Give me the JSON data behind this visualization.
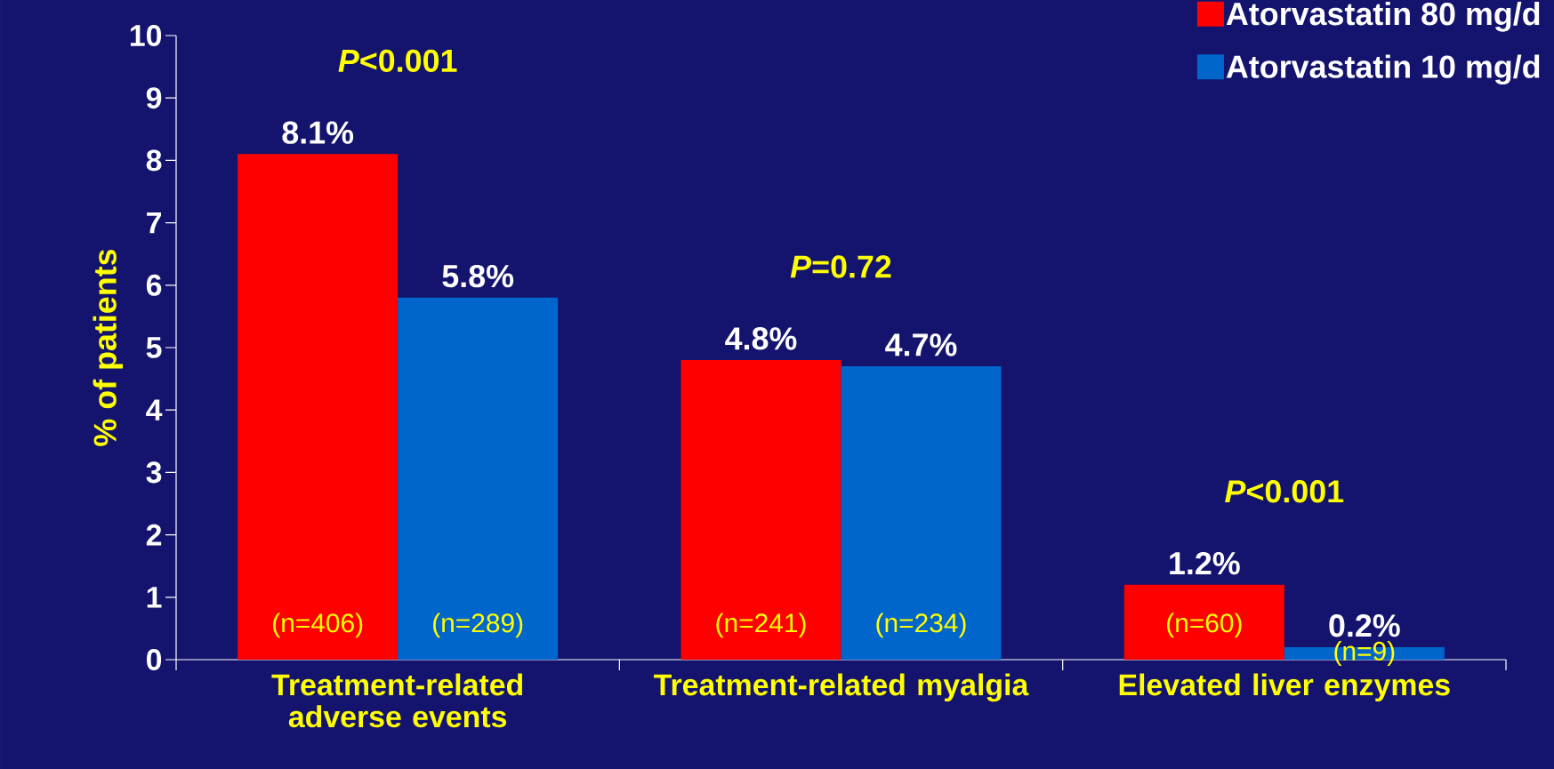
{
  "chart_data": {
    "type": "bar",
    "ylabel": "% of patients",
    "categories": [
      "Treatment-related adverse events",
      "Treatment-related myalgia",
      "Elevated liver enzymes"
    ],
    "series": [
      {
        "name": "Atorvastatin 80 mg/d",
        "color": "#ff0000",
        "values": [
          8.1,
          4.8,
          1.2
        ],
        "value_labels": [
          "8.1%",
          "4.8%",
          "1.2%"
        ]
      },
      {
        "name": "Atorvastatin 10 mg/d",
        "color": "#0066cc",
        "values": [
          5.8,
          4.7,
          0.2
        ],
        "value_labels": [
          "5.8%",
          "4.7%",
          "0.2%"
        ]
      }
    ],
    "ylim": [
      0,
      10
    ],
    "yticks": [
      0,
      1,
      2,
      3,
      4,
      5,
      6,
      7,
      8,
      9,
      10
    ],
    "legend": "top right",
    "annotations": [
      "*P*<0.001",
      "*P*=0.72",
      "*P*<0.001",
      "(n=406)",
      "(n=289)",
      "(n=241)",
      "(n=234)",
      "(n=60)",
      "(n=9)"
    ]
  }
}
